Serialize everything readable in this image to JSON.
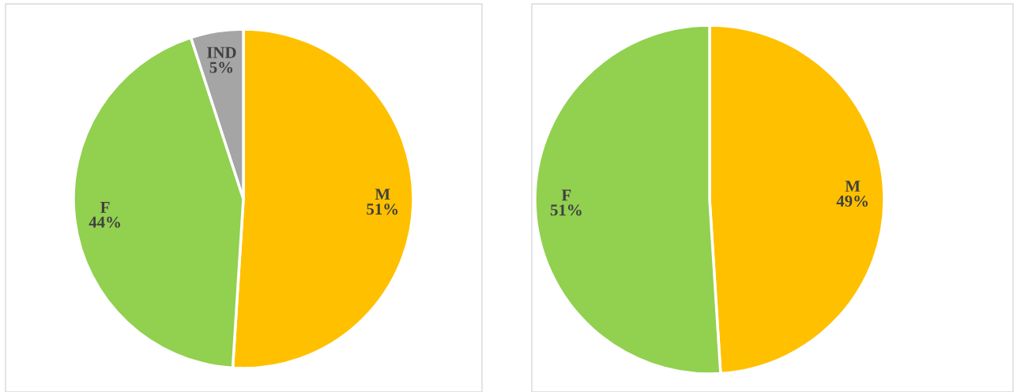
{
  "chart_data": [
    {
      "type": "pie",
      "categories": [
        "M",
        "F",
        "IND"
      ],
      "values": [
        51,
        44,
        5
      ],
      "colors": [
        "#ffc000",
        "#92d050",
        "#a5a5a5"
      ],
      "value_labels": [
        "51%",
        "44%",
        "5%"
      ]
    },
    {
      "type": "pie",
      "categories": [
        "M",
        "F"
      ],
      "values": [
        49,
        51
      ],
      "colors": [
        "#ffc000",
        "#92d050"
      ],
      "value_labels": [
        "49%",
        "51%"
      ]
    }
  ]
}
